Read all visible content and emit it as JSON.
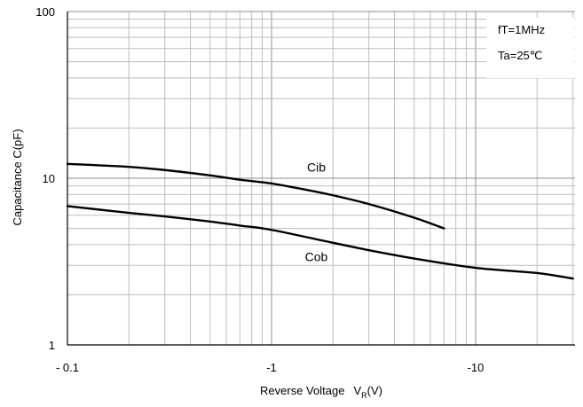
{
  "chart_data": {
    "type": "line",
    "xlabel": "Reverse Voltage",
    "xlabel_symbol": "V",
    "xlabel_subscript": "R",
    "xlabel_unit": "(V)",
    "ylabel": "Capacitance  C(pF)",
    "x_scale": "log",
    "y_scale": "log",
    "x_reversed_sign": true,
    "xlim": [
      -0.1,
      -30
    ],
    "ylim": [
      1,
      100
    ],
    "x_ticks": [
      {
        "value": -0.1,
        "label": "- 0.1"
      },
      {
        "value": -1,
        "label": "-1"
      },
      {
        "value": -10,
        "label": "-10"
      }
    ],
    "y_ticks": [
      {
        "value": 1,
        "label": "1"
      },
      {
        "value": 10,
        "label": "10"
      },
      {
        "value": 100,
        "label": "100"
      }
    ],
    "grid": true,
    "annotations": [
      "fT=1MHz",
      "Ta=25℃"
    ],
    "series": [
      {
        "name": "Cib",
        "x": [
          -0.1,
          -0.2,
          -0.3,
          -0.5,
          -0.7,
          -1,
          -1.5,
          -2,
          -3,
          -5,
          -7
        ],
        "y": [
          12.2,
          11.7,
          11.2,
          10.4,
          9.8,
          9.3,
          8.5,
          7.9,
          7.0,
          5.8,
          5.0
        ]
      },
      {
        "name": "Cob",
        "x": [
          -0.1,
          -0.2,
          -0.3,
          -0.5,
          -0.7,
          -1,
          -2,
          -3,
          -5,
          -10,
          -20,
          -30
        ],
        "y": [
          6.8,
          6.2,
          5.9,
          5.5,
          5.2,
          4.9,
          4.1,
          3.7,
          3.3,
          2.9,
          2.7,
          2.5
        ]
      }
    ]
  }
}
